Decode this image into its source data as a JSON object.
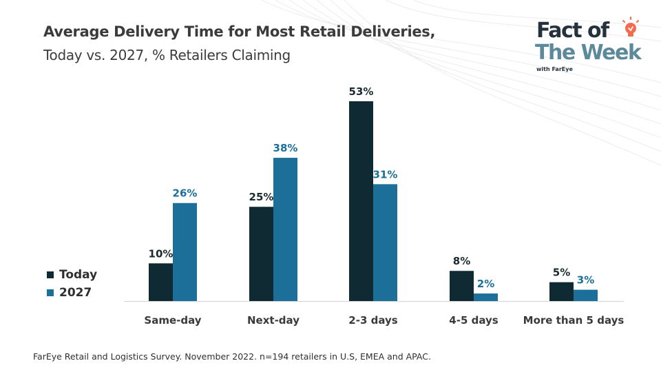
{
  "header": {
    "title": "Average Delivery Time for Most Retail Deliveries,",
    "subtitle": "Today vs. 2027, % Retailers Claiming"
  },
  "brand": {
    "line1": "Fact of",
    "line2": "The Week",
    "sub": "with FarEye",
    "icon": "lightbulb-icon",
    "accent": "#f26b4f"
  },
  "footnote": "FarEye Retail and Logistics Survey. November 2022. n=194 retailers in U.S, EMEA and APAC.",
  "colors": {
    "today": "#0f2a33",
    "y2027": "#1c6f98"
  },
  "chart_data": {
    "type": "bar",
    "title": "Average Delivery Time for Most Retail Deliveries,",
    "subtitle": "Today vs. 2027, % Retailers Claiming",
    "categories": [
      "Same-day",
      "Next-day",
      "2-3 days",
      "4-5 days",
      "More than 5 days"
    ],
    "series": [
      {
        "name": "Today",
        "values": [
          10,
          25,
          53,
          8,
          5
        ],
        "labels": [
          "10%",
          "25%",
          "53%",
          "8%",
          "5%"
        ]
      },
      {
        "name": "2027",
        "values": [
          26,
          38,
          31,
          2,
          3
        ],
        "labels": [
          "26%",
          "38%",
          "31%",
          "2%",
          "3%"
        ]
      }
    ],
    "ylim": [
      0,
      55
    ],
    "grid": false,
    "legend": "left"
  }
}
